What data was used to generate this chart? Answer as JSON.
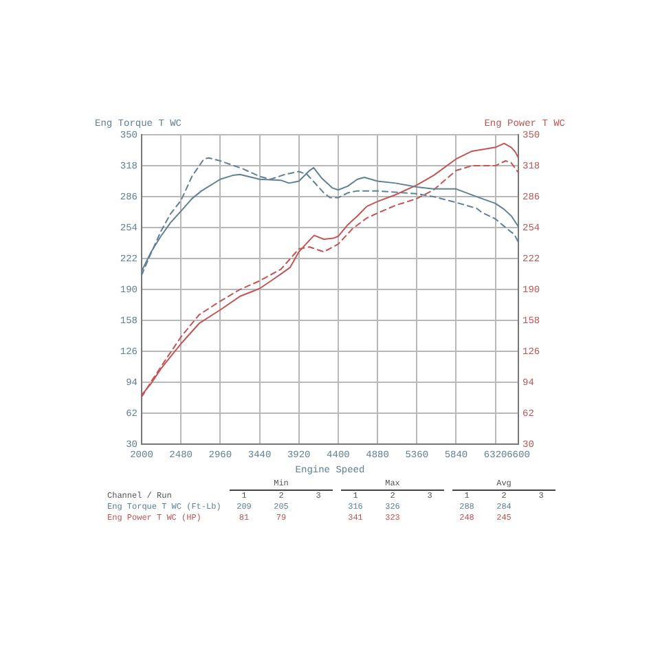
{
  "chart_data": {
    "type": "line",
    "xlabel": "Engine Speed",
    "ylabel": "Eng Torque T WC",
    "y2label": "Eng Power T WC",
    "xlim": [
      2000,
      6600
    ],
    "xticks": [
      2000,
      2480,
      2960,
      3440,
      3920,
      4400,
      4880,
      5360,
      5840,
      6320,
      6600
    ],
    "ylim": [
      30,
      350
    ],
    "yticks": [
      30,
      62,
      94,
      126,
      158,
      190,
      222,
      254,
      286,
      318,
      350
    ],
    "y2lim": [
      30,
      350
    ],
    "y2ticks": [
      30,
      62,
      94,
      126,
      158,
      190,
      222,
      254,
      286,
      318,
      350
    ],
    "grid": true,
    "series": [
      {
        "color": "#5f8196",
        "line_style": "solid",
        "axis": "y",
        "x": [
          2000,
          2117,
          2234,
          2351,
          2480,
          2615,
          2732,
          2960,
          3112,
          3200,
          3440,
          3700,
          3800,
          3920,
          4050,
          4100,
          4200,
          4330,
          4400,
          4520,
          4634,
          4720,
          4880,
          5100,
          5360,
          5560,
          5840,
          6090,
          6320,
          6425,
          6515,
          6600
        ],
        "values": [
          209,
          229,
          245,
          259,
          271,
          284,
          292,
          304,
          308,
          309,
          304,
          303,
          300,
          302,
          313,
          316,
          305,
          295,
          293,
          297,
          304,
          306,
          302,
          300,
          296,
          294,
          294,
          286,
          279,
          273,
          266,
          255
        ]
      },
      {
        "color": "#5f8196",
        "line_style": "dashed",
        "axis": "y",
        "x": [
          2000,
          2117,
          2234,
          2351,
          2480,
          2615,
          2761,
          2820,
          2960,
          3230,
          3440,
          3575,
          3750,
          3920,
          4020,
          4224,
          4300,
          4400,
          4520,
          4634,
          4880,
          5360,
          5565,
          5840,
          6090,
          6150,
          6320,
          6460,
          6550,
          6600
        ],
        "values": [
          205,
          228,
          250,
          268,
          282,
          307,
          325,
          326,
          323,
          315,
          307,
          304,
          309,
          312,
          309,
          290,
          285,
          285,
          290,
          292,
          292,
          289,
          286,
          280,
          274,
          270,
          263,
          253,
          247,
          239
        ]
      },
      {
        "color": "#c65454",
        "line_style": "solid",
        "axis": "y2",
        "x": [
          2000,
          2117,
          2234,
          2480,
          2702,
          2960,
          3200,
          3440,
          3580,
          3700,
          3814,
          3920,
          4050,
          4107,
          4225,
          4340,
          4400,
          4517,
          4634,
          4750,
          4880,
          5100,
          5360,
          5565,
          5840,
          6033,
          6320,
          6425,
          6513,
          6565,
          6600
        ],
        "values": [
          81,
          93,
          108,
          134,
          155,
          169,
          183,
          191,
          199,
          206,
          213,
          229,
          241,
          246,
          242,
          243,
          245,
          257,
          266,
          276,
          281,
          288,
          298,
          308,
          325,
          333,
          337,
          341,
          337,
          332,
          326
        ]
      },
      {
        "color": "#c65454",
        "line_style": "dashed",
        "axis": "y2",
        "x": [
          2000,
          2117,
          2234,
          2480,
          2702,
          2960,
          3200,
          3440,
          3700,
          3920,
          4050,
          4225,
          4400,
          4576,
          4750,
          4880,
          5100,
          5360,
          5565,
          5840,
          6033,
          6320,
          6443,
          6513,
          6600
        ],
        "values": [
          79,
          95,
          110,
          141,
          164,
          178,
          190,
          199,
          211,
          232,
          234,
          229,
          237,
          253,
          264,
          269,
          277,
          284,
          293,
          313,
          318,
          318,
          323,
          321,
          311
        ]
      }
    ],
    "annotations": [
      "Min",
      "Max",
      "Avg",
      "Channel / Run",
      "1",
      "2",
      "3",
      "1",
      "2",
      "3",
      "1",
      "2",
      "3",
      "Eng Torque T WC (Ft-Lb)",
      "209",
      "205",
      "316",
      "326",
      "288",
      "284",
      "Eng Power T WC (HP)",
      "81",
      "79",
      "341",
      "323",
      "248",
      "245"
    ]
  }
}
